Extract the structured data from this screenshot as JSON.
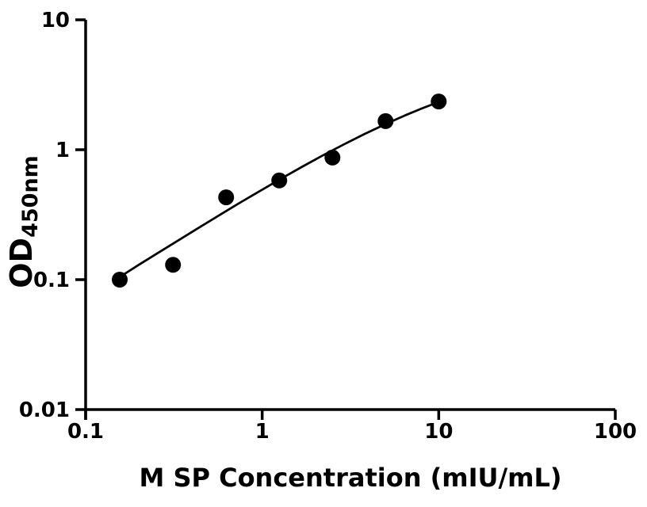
{
  "colors": {
    "foreground": "#000000",
    "background": "#ffffff"
  },
  "chart_data": {
    "type": "scatter",
    "title": "",
    "xlabel": "M SP Concentration (mIU/mL)",
    "ylabel": "OD",
    "ylabel_subscript": "450nm",
    "x_scale": "log",
    "y_scale": "log",
    "xlim": [
      0.1,
      100
    ],
    "ylim": [
      0.01,
      10
    ],
    "x_ticks": [
      0.1,
      1,
      10,
      100
    ],
    "x_tick_labels": [
      "0.1",
      "1",
      "10",
      "100"
    ],
    "y_ticks": [
      0.01,
      0.1,
      1,
      10
    ],
    "y_tick_labels": [
      "0.01",
      "0.1",
      "1",
      "10"
    ],
    "grid": false,
    "legend": "none",
    "marker": "filled-circle",
    "series": [
      {
        "name": "standard-points",
        "type": "scatter",
        "color": "#000000",
        "x": [
          0.156,
          0.3125,
          0.625,
          1.25,
          2.5,
          5,
          10
        ],
        "y": [
          0.1,
          0.13,
          0.43,
          0.58,
          0.87,
          1.66,
          2.35
        ]
      },
      {
        "name": "fit-curve",
        "type": "line",
        "color": "#000000",
        "points": [
          [
            0.153,
            0.103
          ],
          [
            0.2,
            0.13
          ],
          [
            0.26,
            0.162
          ],
          [
            0.34,
            0.203
          ],
          [
            0.45,
            0.257
          ],
          [
            0.58,
            0.317
          ],
          [
            0.76,
            0.396
          ],
          [
            1.0,
            0.493
          ],
          [
            1.3,
            0.606
          ],
          [
            1.7,
            0.745
          ],
          [
            2.2,
            0.902
          ],
          [
            2.9,
            1.099
          ],
          [
            3.8,
            1.322
          ],
          [
            5.0,
            1.577
          ],
          [
            6.5,
            1.847
          ],
          [
            8.0,
            2.075
          ],
          [
            10.05,
            2.339
          ]
        ]
      }
    ]
  }
}
